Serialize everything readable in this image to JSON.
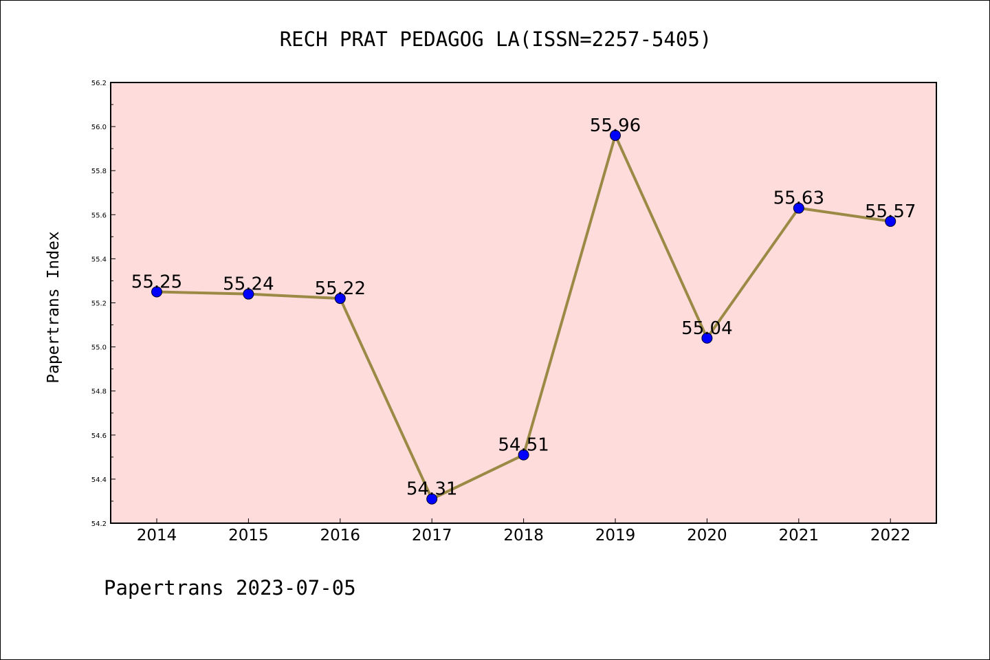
{
  "chart_data": {
    "type": "line",
    "title": "RECH PRAT PEDAGOG LA(ISSN=2257-5405)",
    "ylabel": "Papertrans Index",
    "xlabel": "",
    "footer": "Papertrans 2023-07-05",
    "categories": [
      "2014",
      "2015",
      "2016",
      "2017",
      "2018",
      "2019",
      "2020",
      "2021",
      "2022"
    ],
    "values": [
      55.25,
      55.24,
      55.22,
      54.31,
      54.51,
      55.96,
      55.04,
      55.63,
      55.57
    ],
    "data_labels": [
      "55.25",
      "55.24",
      "55.22",
      "54.31",
      "54.51",
      "55.96",
      "55.04",
      "55.63",
      "55.57"
    ],
    "ylim": [
      54.2,
      56.2
    ],
    "yticks": [
      "54.2",
      "54.4",
      "54.6",
      "54.8",
      "55.0",
      "55.2",
      "55.4",
      "55.6",
      "55.8",
      "56.0",
      "56.2"
    ],
    "grid": false,
    "colors": {
      "plot_background": "#ffdcdc",
      "line": "#9b8a45",
      "marker": "#0000ff"
    }
  }
}
